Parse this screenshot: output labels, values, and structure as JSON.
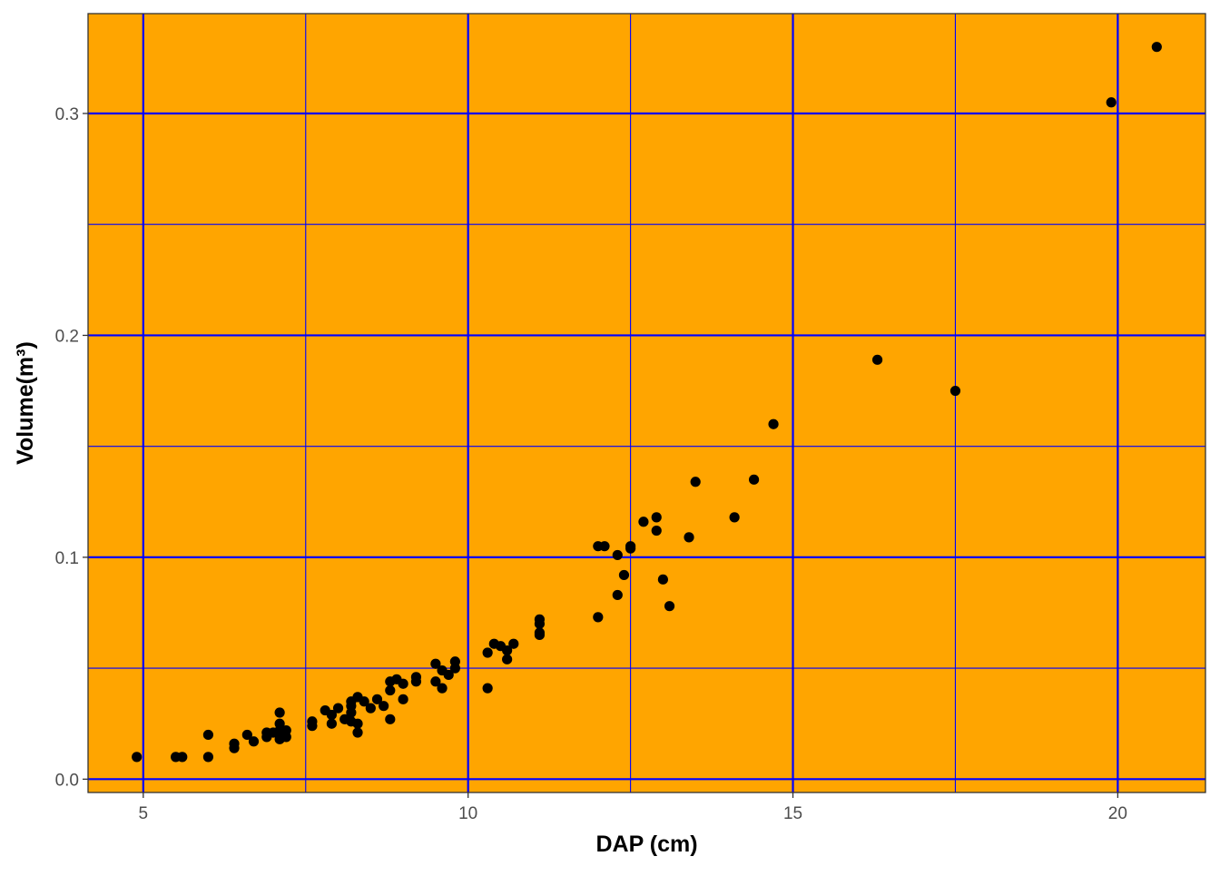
{
  "colors": {
    "panel_background": "#FFA500",
    "grid_lines": "#0000FF",
    "points": "#000000",
    "panel_border": "#333333"
  },
  "chart_data": {
    "type": "scatter",
    "xlabel": "DAP (cm)",
    "ylabel": "Volume(m³)",
    "xlim": [
      4.15,
      21.35
    ],
    "ylim": [
      -0.006,
      0.345
    ],
    "x_ticks": [
      5,
      10,
      15,
      20
    ],
    "x_tick_labels": [
      "5",
      "10",
      "15",
      "20"
    ],
    "x_minor_ticks": [
      7.5,
      12.5,
      17.5
    ],
    "y_ticks": [
      0.0,
      0.1,
      0.2,
      0.3
    ],
    "y_tick_labels": [
      "0.0",
      "0.1",
      "0.2",
      "0.3"
    ],
    "y_minor_ticks": [
      0.05,
      0.15,
      0.25
    ],
    "grid": true,
    "legend": "none",
    "points": [
      [
        4.9,
        0.01
      ],
      [
        5.5,
        0.01
      ],
      [
        5.6,
        0.01
      ],
      [
        6.0,
        0.01
      ],
      [
        6.0,
        0.02
      ],
      [
        6.4,
        0.014
      ],
      [
        6.4,
        0.016
      ],
      [
        6.6,
        0.02
      ],
      [
        6.7,
        0.017
      ],
      [
        6.9,
        0.019
      ],
      [
        6.9,
        0.021
      ],
      [
        7.0,
        0.021
      ],
      [
        7.1,
        0.018
      ],
      [
        7.1,
        0.022
      ],
      [
        7.1,
        0.025
      ],
      [
        7.1,
        0.03
      ],
      [
        7.2,
        0.019
      ],
      [
        7.2,
        0.022
      ],
      [
        7.6,
        0.024
      ],
      [
        7.6,
        0.026
      ],
      [
        7.8,
        0.031
      ],
      [
        7.9,
        0.025
      ],
      [
        7.9,
        0.029
      ],
      [
        8.0,
        0.032
      ],
      [
        8.1,
        0.027
      ],
      [
        8.2,
        0.026
      ],
      [
        8.2,
        0.03
      ],
      [
        8.2,
        0.033
      ],
      [
        8.2,
        0.035
      ],
      [
        8.3,
        0.021
      ],
      [
        8.3,
        0.025
      ],
      [
        8.3,
        0.037
      ],
      [
        8.4,
        0.035
      ],
      [
        8.5,
        0.032
      ],
      [
        8.6,
        0.036
      ],
      [
        8.7,
        0.033
      ],
      [
        8.8,
        0.027
      ],
      [
        8.8,
        0.04
      ],
      [
        8.8,
        0.044
      ],
      [
        8.9,
        0.045
      ],
      [
        9.0,
        0.036
      ],
      [
        9.0,
        0.043
      ],
      [
        9.2,
        0.044
      ],
      [
        9.2,
        0.046
      ],
      [
        9.5,
        0.044
      ],
      [
        9.5,
        0.052
      ],
      [
        9.6,
        0.041
      ],
      [
        9.6,
        0.049
      ],
      [
        9.7,
        0.047
      ],
      [
        9.8,
        0.05
      ],
      [
        9.8,
        0.053
      ],
      [
        10.3,
        0.041
      ],
      [
        10.3,
        0.057
      ],
      [
        10.4,
        0.061
      ],
      [
        10.5,
        0.06
      ],
      [
        10.6,
        0.054
      ],
      [
        10.6,
        0.058
      ],
      [
        10.7,
        0.061
      ],
      [
        11.1,
        0.065
      ],
      [
        11.1,
        0.066
      ],
      [
        11.1,
        0.07
      ],
      [
        11.1,
        0.072
      ],
      [
        12.0,
        0.073
      ],
      [
        12.0,
        0.105
      ],
      [
        12.1,
        0.105
      ],
      [
        12.3,
        0.083
      ],
      [
        12.3,
        0.101
      ],
      [
        12.4,
        0.092
      ],
      [
        12.5,
        0.104
      ],
      [
        12.5,
        0.105
      ],
      [
        12.7,
        0.116
      ],
      [
        12.9,
        0.112
      ],
      [
        12.9,
        0.118
      ],
      [
        13.0,
        0.09
      ],
      [
        13.1,
        0.078
      ],
      [
        13.4,
        0.109
      ],
      [
        13.5,
        0.134
      ],
      [
        14.1,
        0.118
      ],
      [
        14.4,
        0.135
      ],
      [
        14.7,
        0.16
      ],
      [
        16.3,
        0.189
      ],
      [
        17.5,
        0.175
      ],
      [
        19.9,
        0.305
      ],
      [
        20.6,
        0.33
      ]
    ]
  }
}
